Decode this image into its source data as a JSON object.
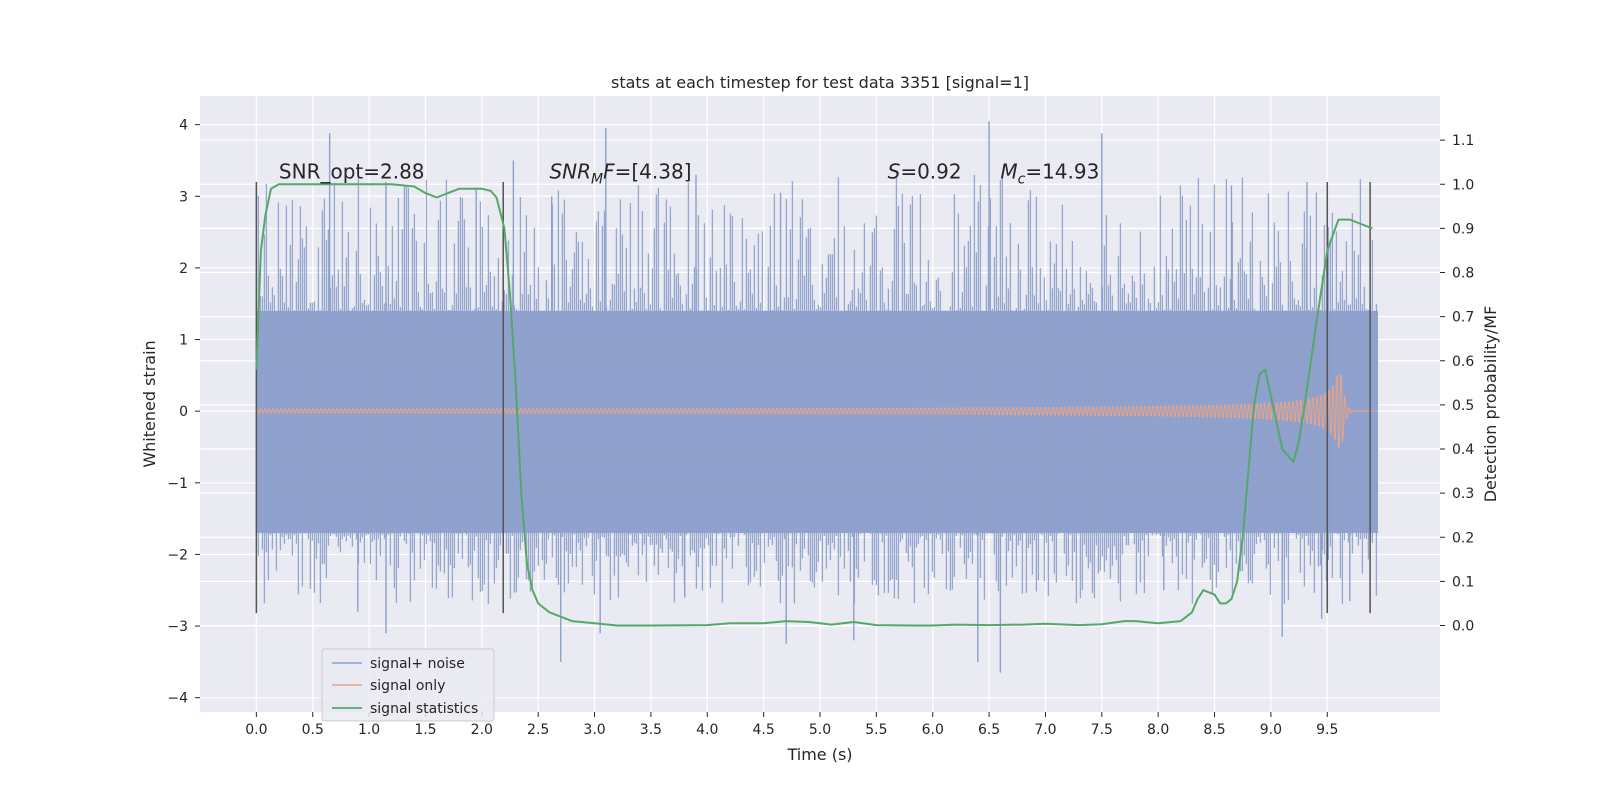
{
  "chart_data": {
    "type": "line",
    "title": "stats at each timestep for test data 3351 [signal=1]",
    "xlabel": "Time (s)",
    "ylabel": "Whitened strain",
    "ylabel_right": "Detection probability/MF",
    "xlim": [
      -0.5,
      10.5
    ],
    "ylim": [
      -4.2,
      4.4
    ],
    "ylim_right": [
      -0.196,
      1.2
    ],
    "x_ticks": [
      "0.0",
      "0.5",
      "1.0",
      "1.5",
      "2.0",
      "2.5",
      "3.0",
      "3.5",
      "4.0",
      "4.5",
      "5.0",
      "5.5",
      "6.0",
      "6.5",
      "7.0",
      "7.5",
      "8.0",
      "8.5",
      "9.0",
      "9.5"
    ],
    "y_ticks": [
      "−4",
      "−3",
      "−2",
      "−1",
      "0",
      "1",
      "2",
      "3",
      "4"
    ],
    "y_ticks_right": [
      "0.0",
      "0.1",
      "0.2",
      "0.3",
      "0.4",
      "0.5",
      "0.6",
      "0.7",
      "0.8",
      "0.9",
      "1.0",
      "1.1"
    ],
    "grid": true,
    "legend_placement": "lower-left",
    "annotations": [
      {
        "text": "SNR_opt=2.88",
        "x": 0.2,
        "y": 3.25
      },
      {
        "text_main": "SNR",
        "text_sub": "M",
        "text_tail": "F=[4.38]",
        "x": 2.6,
        "y": 3.25,
        "italic": true
      },
      {
        "text_main": "S",
        "text_tail": "=0.92",
        "x": 5.6,
        "y": 3.25,
        "italic": true
      },
      {
        "text_main": "M",
        "text_sub": "c",
        "text_tail": "=14.93",
        "x": 6.6,
        "y": 3.25,
        "italic": true
      }
    ],
    "vertical_markers": [
      0.0,
      2.19,
      9.5,
      9.88
    ],
    "vertical_marker_range": [
      -2.82,
      3.2
    ],
    "series": [
      {
        "name": "signal+ noise",
        "color": "#8da0cb",
        "kind": "noise-band",
        "x_range": [
          0.0,
          9.95
        ],
        "envelope": {
          "lower": -1.7,
          "upper": 1.4,
          "spike_max": 4.05,
          "spike_min": -3.65
        },
        "spikes": [
          [
            0.65,
            3.88
          ],
          [
            1.15,
            3.2
          ],
          [
            1.95,
            3.12
          ],
          [
            2.28,
            3.5
          ],
          [
            2.62,
            3.0
          ],
          [
            3.1,
            3.95
          ],
          [
            3.05,
            -3.1
          ],
          [
            3.9,
            3.3
          ],
          [
            4.65,
            3.05
          ],
          [
            6.5,
            4.05
          ],
          [
            7.5,
            3.88
          ],
          [
            8.65,
            3.15
          ],
          [
            9.32,
            3.2
          ],
          [
            0.9,
            -2.8
          ],
          [
            2.7,
            -3.5
          ],
          [
            1.15,
            -3.1
          ],
          [
            4.7,
            -3.25
          ],
          [
            5.3,
            -3.2
          ],
          [
            6.4,
            -3.5
          ],
          [
            6.6,
            -3.65
          ],
          [
            9.1,
            -3.15
          ],
          [
            9.45,
            -2.9
          ],
          [
            3.8,
            -2.6
          ],
          [
            8.05,
            -2.5
          ],
          [
            9.7,
            -2.65
          ]
        ]
      },
      {
        "name": "signal only",
        "color": "#e7a48b",
        "kind": "chirp",
        "x_range": [
          0.0,
          9.95
        ],
        "chirp_peak_time": 9.63,
        "chirp_peak_amplitude": 0.5
      },
      {
        "name": "signal statistics",
        "color": "#55a868",
        "axis": "right",
        "x": [
          0.0,
          0.04,
          0.08,
          0.13,
          0.2,
          0.3,
          0.5,
          1.0,
          1.2,
          1.4,
          1.5,
          1.6,
          1.7,
          1.8,
          1.9,
          2.0,
          2.08,
          2.13,
          2.2,
          2.25,
          2.3,
          2.35,
          2.4,
          2.45,
          2.5,
          2.55,
          2.6,
          2.7,
          2.8,
          3.0,
          3.2,
          3.5,
          4.0,
          4.2,
          4.5,
          4.7,
          4.9,
          5.0,
          5.1,
          5.3,
          5.5,
          5.8,
          6.0,
          6.2,
          6.5,
          6.8,
          7.0,
          7.3,
          7.5,
          7.7,
          7.8,
          8.0,
          8.2,
          8.3,
          8.35,
          8.4,
          8.5,
          8.55,
          8.6,
          8.65,
          8.7,
          8.75,
          8.8,
          8.85,
          8.9,
          8.95,
          9.0,
          9.1,
          9.2,
          9.25,
          9.3,
          9.4,
          9.5,
          9.6,
          9.65,
          9.7,
          9.8,
          9.9
        ],
        "values": [
          0.58,
          0.85,
          0.93,
          0.99,
          1.0,
          1.0,
          1.0,
          1.0,
          1.0,
          0.995,
          0.98,
          0.97,
          0.98,
          0.99,
          0.99,
          0.99,
          0.985,
          0.97,
          0.9,
          0.75,
          0.55,
          0.3,
          0.14,
          0.08,
          0.05,
          0.04,
          0.03,
          0.02,
          0.01,
          0.005,
          0.0,
          0.0,
          0.001,
          0.005,
          0.005,
          0.01,
          0.008,
          0.005,
          0.002,
          0.008,
          0.001,
          0.0,
          0.0,
          0.002,
          0.001,
          0.002,
          0.004,
          0.001,
          0.003,
          0.01,
          0.01,
          0.005,
          0.01,
          0.03,
          0.06,
          0.08,
          0.07,
          0.05,
          0.05,
          0.06,
          0.1,
          0.2,
          0.35,
          0.5,
          0.57,
          0.58,
          0.52,
          0.4,
          0.37,
          0.42,
          0.5,
          0.68,
          0.85,
          0.92,
          0.92,
          0.92,
          0.91,
          0.9
        ]
      }
    ]
  }
}
